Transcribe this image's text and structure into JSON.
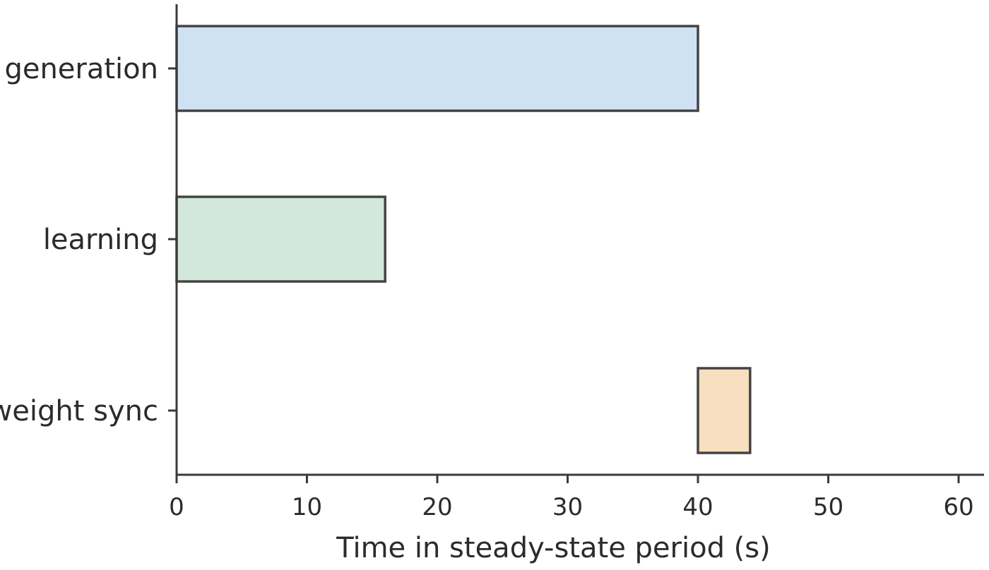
{
  "chart_data": {
    "type": "bar",
    "orientation": "horizontal",
    "title": "",
    "xlabel": "Time in steady-state period (s)",
    "ylabel": "",
    "xlim": [
      0,
      62
    ],
    "xticks": [
      0,
      10,
      20,
      30,
      40,
      50,
      60
    ],
    "grid": false,
    "bars": [
      {
        "label": "generation",
        "start": 0,
        "end": 40,
        "color": "#cfe2f3"
      },
      {
        "label": "learning",
        "start": 0,
        "end": 16,
        "color": "#d2e8dc"
      },
      {
        "label": "weight sync",
        "start": 40,
        "end": 44,
        "color": "#f7dfc0"
      }
    ]
  }
}
